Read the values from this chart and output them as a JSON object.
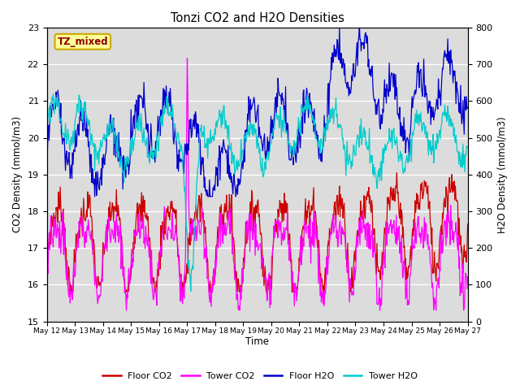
{
  "title": "Tonzi CO2 and H2O Densities",
  "xlabel": "Time",
  "ylabel_left": "CO2 Density (mmol/m3)",
  "ylabel_right": "H2O Density (mmol/m3)",
  "ylim_left": [
    15.0,
    23.0
  ],
  "ylim_right": [
    0,
    800
  ],
  "annotation_text": "TZ_mixed",
  "annotation_color": "#8B0000",
  "annotation_bg": "#FFFF99",
  "annotation_edge": "#CCAA00",
  "x_tick_labels": [
    "May 12",
    "May 13",
    "May 14",
    "May 15",
    "May 16",
    "May 17",
    "May 18",
    "May 19",
    "May 20",
    "May 21",
    "May 22",
    "May 23",
    "May 24",
    "May 25",
    "May 26",
    "May 27"
  ],
  "colors": {
    "floor_co2": "#CC0000",
    "tower_co2": "#FF00FF",
    "floor_h2o": "#0000CC",
    "tower_h2o": "#00CCCC"
  },
  "legend_labels": [
    "Floor CO2",
    "Tower CO2",
    "Floor H2O",
    "Tower H2O"
  ],
  "background_color": "#DCDCDC",
  "grid_color": "#FFFFFF",
  "fig_bg": "#FFFFFF",
  "n_days": 15,
  "pts_per_day": 48
}
